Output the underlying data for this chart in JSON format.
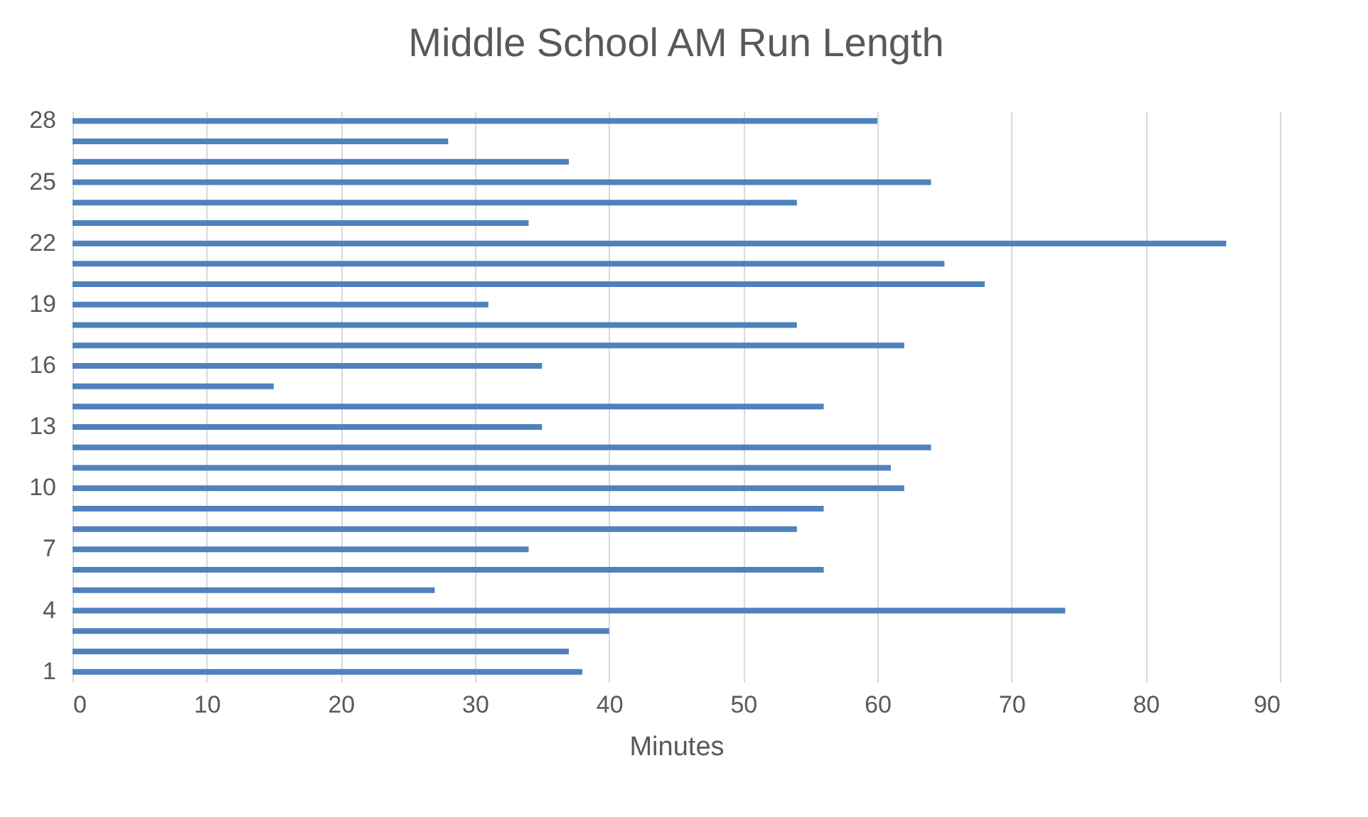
{
  "chart_data": {
    "type": "bar",
    "orientation": "horizontal",
    "title": "Middle School AM Run Length",
    "xlabel": "Minutes",
    "categories": [
      "28",
      null,
      null,
      "25",
      null,
      null,
      "22",
      null,
      null,
      "19",
      null,
      null,
      "16",
      null,
      null,
      "13",
      null,
      null,
      "10",
      null,
      null,
      "7",
      null,
      null,
      "4",
      null,
      null,
      "1"
    ],
    "values": [
      60,
      28,
      37,
      64,
      54,
      34,
      86,
      65,
      68,
      31,
      54,
      62,
      35,
      15,
      56,
      35,
      64,
      61,
      62,
      56,
      54,
      34,
      56,
      27,
      74,
      40,
      37,
      38
    ],
    "color": "#4f81bd",
    "xlim": [
      0,
      90
    ],
    "xticks": [
      0,
      10,
      20,
      30,
      40,
      50,
      60,
      70,
      80,
      90
    ],
    "grid": "x"
  }
}
